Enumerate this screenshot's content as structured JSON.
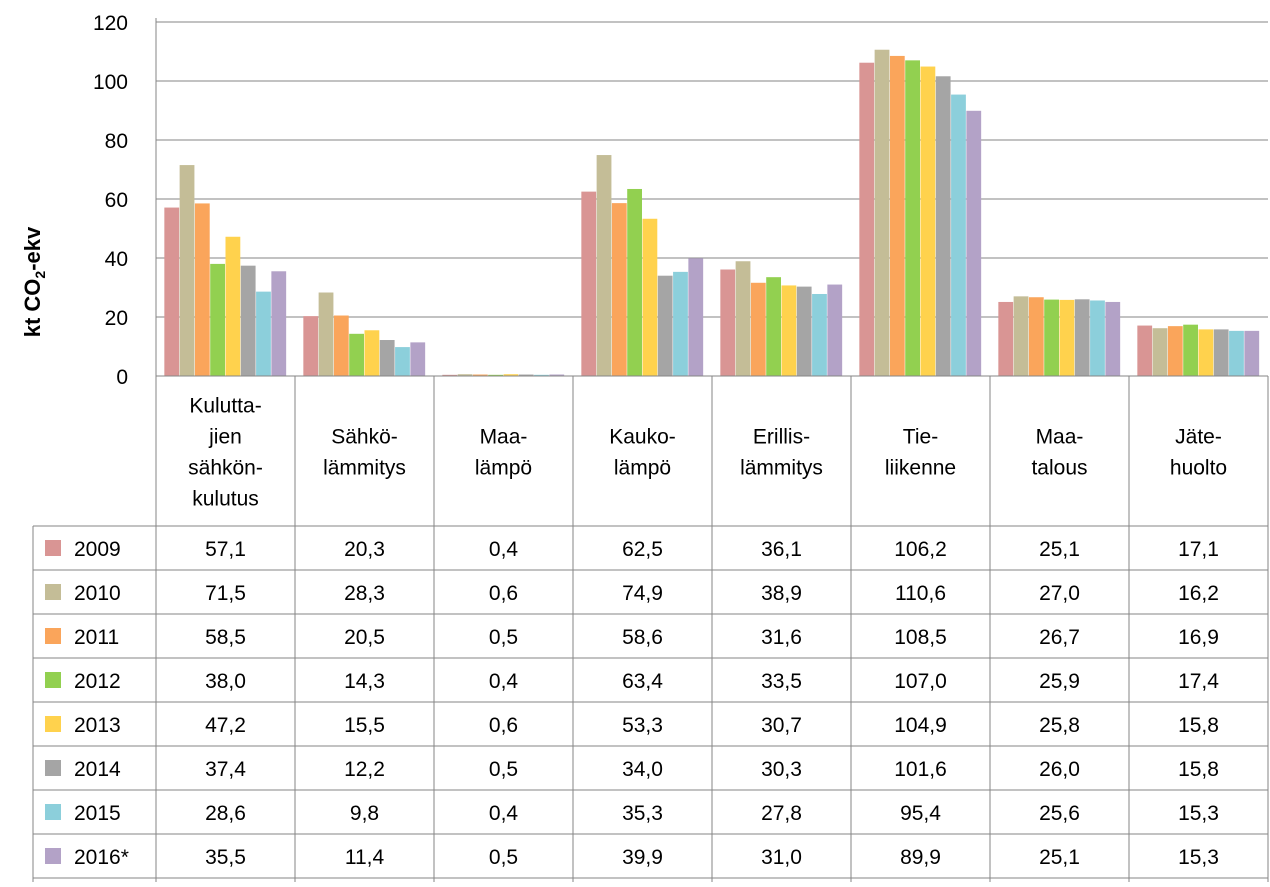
{
  "chart_data": {
    "type": "bar",
    "title": "",
    "ylabel_main": "kt CO",
    "ylabel_sub": "2",
    "ylabel_tail": "-ekv",
    "ylim": [
      0,
      120
    ],
    "yticks": [
      0,
      20,
      40,
      60,
      80,
      100,
      120
    ],
    "grid": true,
    "legend": "table-left",
    "categories": [
      [
        "Kulutta-",
        "jien",
        "sähkön-",
        "kulutus"
      ],
      [
        "Sähkö-",
        "lämmitys"
      ],
      [
        "Maa-",
        "lämpö"
      ],
      [
        "Kauko-",
        "lämpö"
      ],
      [
        "Erillis-",
        "lämmitys"
      ],
      [
        "Tie-",
        "liikenne"
      ],
      [
        "Maa-",
        "talous"
      ],
      [
        "Jäte-",
        "huolto"
      ]
    ],
    "series": [
      {
        "name": "2009",
        "color": "#D99594",
        "values": [
          57.1,
          20.3,
          0.4,
          62.5,
          36.1,
          106.2,
          25.1,
          17.1
        ],
        "labels": [
          "57,1",
          "20,3",
          "0,4",
          "62,5",
          "36,1",
          "106,2",
          "25,1",
          "17,1"
        ]
      },
      {
        "name": "2010",
        "color": "#C4BD97",
        "values": [
          71.5,
          28.3,
          0.6,
          74.9,
          38.9,
          110.6,
          27.0,
          16.2
        ],
        "labels": [
          "71,5",
          "28,3",
          "0,6",
          "74,9",
          "38,9",
          "110,6",
          "27,0",
          "16,2"
        ]
      },
      {
        "name": "2011",
        "color": "#FAA55B",
        "values": [
          58.5,
          20.5,
          0.5,
          58.6,
          31.6,
          108.5,
          26.7,
          16.9
        ],
        "labels": [
          "58,5",
          "20,5",
          "0,5",
          "58,6",
          "31,6",
          "108,5",
          "26,7",
          "16,9"
        ]
      },
      {
        "name": "2012",
        "color": "#92D050",
        "values": [
          38.0,
          14.3,
          0.4,
          63.4,
          33.5,
          107.0,
          25.9,
          17.4
        ],
        "labels": [
          "38,0",
          "14,3",
          "0,4",
          "63,4",
          "33,5",
          "107,0",
          "25,9",
          "17,4"
        ]
      },
      {
        "name": "2013",
        "color": "#FFD24D",
        "values": [
          47.2,
          15.5,
          0.6,
          53.3,
          30.7,
          104.9,
          25.8,
          15.8
        ],
        "labels": [
          "47,2",
          "15,5",
          "0,6",
          "53,3",
          "30,7",
          "104,9",
          "25,8",
          "15,8"
        ]
      },
      {
        "name": "2014",
        "color": "#A5A5A5",
        "values": [
          37.4,
          12.2,
          0.5,
          34.0,
          30.3,
          101.6,
          26.0,
          15.8
        ],
        "labels": [
          "37,4",
          "12,2",
          "0,5",
          "34,0",
          "30,3",
          "101,6",
          "26,0",
          "15,8"
        ]
      },
      {
        "name": "2015",
        "color": "#8CCFDB",
        "values": [
          28.6,
          9.8,
          0.4,
          35.3,
          27.8,
          95.4,
          25.6,
          15.3
        ],
        "labels": [
          "28,6",
          "9,8",
          "0,4",
          "35,3",
          "27,8",
          "95,4",
          "25,6",
          "15,3"
        ]
      },
      {
        "name": "2016*",
        "color": "#B3A2C7",
        "values": [
          35.5,
          11.4,
          0.5,
          39.9,
          31.0,
          89.9,
          25.1,
          15.3
        ],
        "labels": [
          "35,5",
          "11,4",
          "0,5",
          "39,9",
          "31,0",
          "89,9",
          "25,1",
          "15,3"
        ]
      }
    ]
  }
}
